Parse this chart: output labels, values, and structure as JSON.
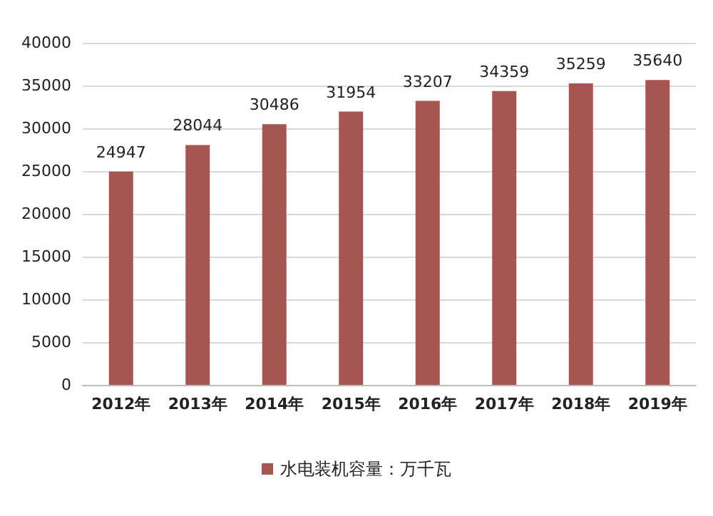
{
  "chart_data": {
    "type": "bar",
    "categories": [
      "2012年",
      "2013年",
      "2014年",
      "2015年",
      "2016年",
      "2017年",
      "2018年",
      "2019年"
    ],
    "series": [
      {
        "name": "水电装机容量：万千瓦",
        "color": "#a65552",
        "values": [
          24947,
          28044,
          30486,
          31954,
          33207,
          34359,
          35259,
          35640
        ]
      }
    ],
    "ylim": [
      0,
      40000
    ],
    "yticks": [
      0,
      5000,
      10000,
      15000,
      20000,
      25000,
      30000,
      35000,
      40000
    ],
    "grid": "y",
    "legend": "bottom",
    "data_labels": true
  }
}
